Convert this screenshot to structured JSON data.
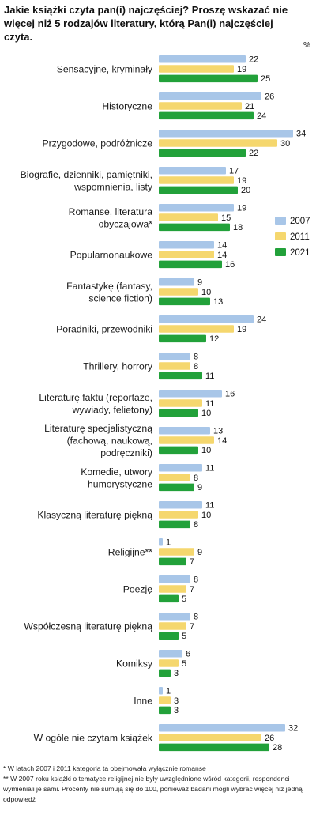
{
  "title": "Jakie książki czyta pan(i) najczęściej? Proszę wskazać nie więcej niż 5 rodzajów literatury, którą Pan(i) najczęściej czyta.",
  "unit": "%",
  "footnotes": [
    "* W latach 2007 i 2011 kategoria ta obejmowała wyłącznie romanse",
    "** W 2007 roku książki o tematyce religijnej nie były uwzględnione wśród kategorii, respondenci wymieniali je sami. Procenty nie sumują się do 100, ponieważ badani mogli wybrać więcej niż jedną odpowiedź"
  ],
  "chart_data": {
    "type": "bar",
    "orientation": "horizontal",
    "categories": [
      "Sensacyjne, kryminały",
      "Historyczne",
      "Przygodowe, podróżnicze",
      "Biografie, dzienniki, pamiętniki, wspomnienia, listy",
      "Romanse, literatura obyczajowa*",
      "Popularnonaukowe",
      "Fantastykę (fantasy, science fiction)",
      "Poradniki, przewodniki",
      "Thrillery, horrory",
      "Literaturę faktu (reportaże, wywiady, felietony)",
      "Literaturę specjalistyczną (fachową, naukową, podręczniki)",
      "Komedie, utwory humorystyczne",
      "Klasyczną literaturę piękną",
      "Religijne**",
      "Poezję",
      "Współczesną literaturę piękną",
      "Komiksy",
      "Inne",
      "W ogóle nie czytam książek"
    ],
    "category_lines": [
      [
        "Sensacyjne, kryminały"
      ],
      [
        "Historyczne"
      ],
      [
        "Przygodowe, podróżnicze"
      ],
      [
        "Biografie, dzienniki, pamiętniki,",
        "wspomnienia, listy"
      ],
      [
        "Romanse, literatura",
        "obyczajowa*"
      ],
      [
        "Popularnonaukowe"
      ],
      [
        "Fantastykę (fantasy,",
        "science fiction)"
      ],
      [
        "Poradniki, przewodniki"
      ],
      [
        "Thrillery, horrory"
      ],
      [
        "Literaturę faktu (reportaże,",
        "wywiady, felietony)"
      ],
      [
        "Literaturę specjalistyczną",
        "(fachową, naukową,",
        "podręczniki)"
      ],
      [
        "Komedie, utwory",
        "humorystyczne"
      ],
      [
        "Klasyczną literaturę piękną"
      ],
      [
        "Religijne**"
      ],
      [
        "Poezję"
      ],
      [
        "Współczesną literaturę piękną"
      ],
      [
        "Komiksy"
      ],
      [
        "Inne"
      ],
      [
        "W ogóle nie czytam książek"
      ]
    ],
    "series": [
      {
        "name": "2007",
        "color": "#a8c6e8",
        "values": [
          22,
          26,
          34,
          17,
          19,
          14,
          9,
          24,
          8,
          16,
          13,
          11,
          11,
          1,
          8,
          8,
          6,
          1,
          32
        ]
      },
      {
        "name": "2011",
        "color": "#f5d76e",
        "values": [
          19,
          21,
          30,
          19,
          15,
          14,
          10,
          19,
          8,
          11,
          14,
          8,
          10,
          9,
          7,
          7,
          5,
          3,
          26
        ]
      },
      {
        "name": "2021",
        "color": "#22a13a",
        "values": [
          25,
          24,
          22,
          20,
          18,
          16,
          13,
          12,
          11,
          10,
          10,
          9,
          8,
          7,
          5,
          5,
          3,
          3,
          28
        ]
      }
    ],
    "xlim": [
      0,
      34
    ],
    "grid": false,
    "legend_position": "right"
  }
}
